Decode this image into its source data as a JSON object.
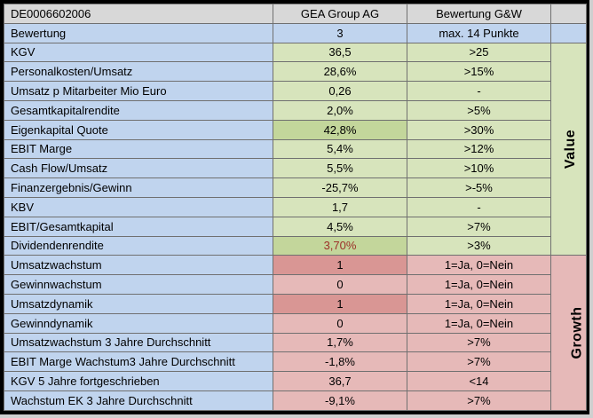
{
  "colors": {
    "outer_border": "#000000",
    "grid_border": "#707070",
    "header_bg": "#d8d8d8",
    "label_bg": "#c0d4ee",
    "green_light": "#d7e4bc",
    "green_dark": "#c3d69b",
    "red_light": "#e6b9b8",
    "red_dark": "#d99694",
    "negative_text": "#9c2f28"
  },
  "header": {
    "isin": "DE0006602006",
    "company": "GEA Group AG",
    "rating_column": "Bewertung G&W"
  },
  "summary": {
    "label": "Bewertung",
    "value": "3",
    "criteria": "max. 14 Punkte"
  },
  "sections": [
    {
      "name": "Value",
      "tint": "green",
      "rows": [
        {
          "label": "KGV",
          "value": "36,5",
          "criteria": ">25",
          "value_shade": "light",
          "value_text": "normal"
        },
        {
          "label": "Personalkosten/Umsatz",
          "value": "28,6%",
          "criteria": ">15%",
          "value_shade": "light",
          "value_text": "normal"
        },
        {
          "label": "Umsatz p Mitarbeiter Mio Euro",
          "value": "0,26",
          "criteria": "-",
          "value_shade": "light",
          "value_text": "normal"
        },
        {
          "label": "Gesamtkapitalrendite",
          "value": "2,0%",
          "criteria": ">5%",
          "value_shade": "light",
          "value_text": "normal"
        },
        {
          "label": "Eigenkapital Quote",
          "value": "42,8%",
          "criteria": ">30%",
          "value_shade": "dark",
          "value_text": "normal"
        },
        {
          "label": "EBIT Marge",
          "value": "5,4%",
          "criteria": ">12%",
          "value_shade": "light",
          "value_text": "normal"
        },
        {
          "label": "Cash Flow/Umsatz",
          "value": "5,5%",
          "criteria": ">10%",
          "value_shade": "light",
          "value_text": "normal"
        },
        {
          "label": "Finanzergebnis/Gewinn",
          "value": "-25,7%",
          "criteria": ">-5%",
          "value_shade": "light",
          "value_text": "normal"
        },
        {
          "label": "KBV",
          "value": "1,7",
          "criteria": "-",
          "value_shade": "light",
          "value_text": "normal"
        },
        {
          "label": "EBIT/Gesamtkapital",
          "value": "4,5%",
          "criteria": ">7%",
          "value_shade": "light",
          "value_text": "normal"
        },
        {
          "label": "Dividendenrendite",
          "value": "3,70%",
          "criteria": ">3%",
          "value_shade": "dark",
          "value_text": "negative"
        }
      ]
    },
    {
      "name": "Growth",
      "tint": "red",
      "rows": [
        {
          "label": "Umsatzwachstum",
          "value": "1",
          "criteria": "1=Ja, 0=Nein",
          "value_shade": "dark",
          "value_text": "normal"
        },
        {
          "label": "Gewinnwachstum",
          "value": "0",
          "criteria": "1=Ja, 0=Nein",
          "value_shade": "light",
          "value_text": "normal"
        },
        {
          "label": "Umsatzdynamik",
          "value": "1",
          "criteria": "1=Ja, 0=Nein",
          "value_shade": "dark",
          "value_text": "normal"
        },
        {
          "label": "Gewinndynamik",
          "value": "0",
          "criteria": "1=Ja, 0=Nein",
          "value_shade": "light",
          "value_text": "normal"
        },
        {
          "label": "Umsatzwachstum 3 Jahre Durchschnitt",
          "value": "1,7%",
          "criteria": ">7%",
          "value_shade": "light",
          "value_text": "normal"
        },
        {
          "label": "EBIT Marge Wachstum3 Jahre Durchschnitt",
          "value": "-1,8%",
          "criteria": ">7%",
          "value_shade": "light",
          "value_text": "normal"
        },
        {
          "label": "KGV 5 Jahre fortgeschrieben",
          "value": "36,7",
          "criteria": "<14",
          "value_shade": "light",
          "value_text": "normal"
        },
        {
          "label": "Wachstum EK 3 Jahre Durchschnitt",
          "value": "-9,1%",
          "criteria": ">7%",
          "value_shade": "light",
          "value_text": "normal"
        }
      ]
    }
  ]
}
